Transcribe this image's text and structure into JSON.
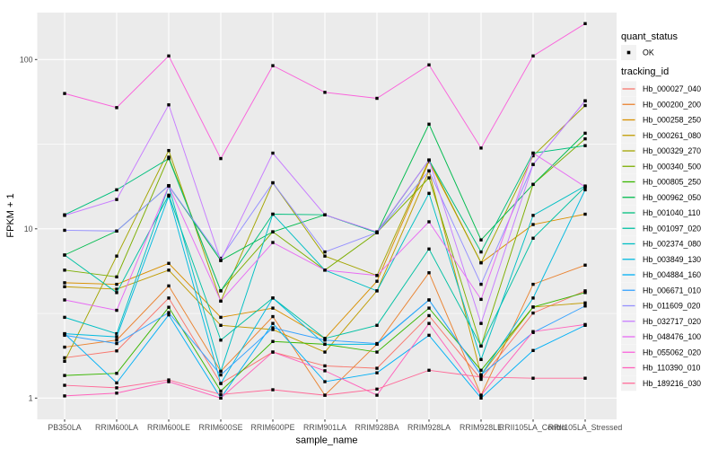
{
  "legend": {
    "quant_title": "quant_status",
    "quant_value": "OK",
    "tracking_title": "tracking_id",
    "key_bg": "#F2F2F2",
    "point_color": "#000000"
  },
  "panel": {
    "bg": "#EBEBEB",
    "grid_color": "#FFFFFF",
    "tick_color": "#333333",
    "tick_label_color": "#4D4D4D"
  },
  "chart_data": {
    "type": "line",
    "title": "",
    "xlabel": "sample_name",
    "ylabel": "FPKM + 1",
    "y_scale": "log10",
    "ylim": [
      0.95,
      190
    ],
    "grid": "white major and minor on gray panel",
    "legend_position": "right",
    "point_marker": "small black square (quant_status OK)",
    "y_ticks": {
      "labels": [
        "100",
        "10",
        "1"
      ],
      "values": [
        100,
        10,
        1
      ]
    },
    "y_minor_ticks": [
      3.162,
      31.62
    ],
    "categories": [
      "PB350LA",
      "RRIM600LA",
      "RRIM600LE",
      "RRIM600SE",
      "RRIM600PE",
      "RRIM901LA",
      "RRIM928BA",
      "RRIM928LA",
      "RRIM928LE",
      "RRII105LA_Control",
      "RRII105LA_Stressed"
    ],
    "series": [
      {
        "name": "Hb_000027_040",
        "color": "#F8766D",
        "values": [
          1.73,
          1.9,
          3.9,
          1.22,
          1.87,
          1.55,
          1.5,
          3.07,
          1.29,
          3.18,
          4.3
        ]
      },
      {
        "name": "Hb_000200_200",
        "color": "#EA8331",
        "values": [
          2.0,
          2.2,
          4.6,
          1.44,
          3.03,
          1.04,
          2.08,
          5.5,
          1.04,
          4.7,
          6.1
        ]
      },
      {
        "name": "Hb_000258_250",
        "color": "#D89000",
        "values": [
          4.8,
          4.7,
          6.25,
          3.0,
          3.4,
          2.25,
          4.9,
          25.0,
          6.3,
          10.6,
          12.2
        ]
      },
      {
        "name": "Hb_000261_080",
        "color": "#C09B00",
        "values": [
          4.55,
          4.4,
          5.7,
          2.69,
          2.54,
          1.87,
          4.3,
          22.0,
          1.37,
          3.45,
          3.65
        ]
      },
      {
        "name": "Hb_000329_270",
        "color": "#A3A500",
        "values": [
          1.65,
          6.9,
          29.0,
          3.74,
          18.7,
          6.9,
          5.3,
          25.5,
          6.3,
          27.0,
          53.5
        ]
      },
      {
        "name": "Hb_000340_500",
        "color": "#7CAE00",
        "values": [
          5.7,
          5.2,
          26.5,
          4.3,
          9.6,
          5.7,
          9.5,
          20.0,
          2.03,
          18.3,
          34.0
        ]
      },
      {
        "name": "Hb_000805_250",
        "color": "#39B600",
        "values": [
          1.36,
          1.4,
          3.44,
          1.1,
          2.16,
          2.08,
          1.87,
          3.4,
          1.46,
          3.45,
          4.2
        ]
      },
      {
        "name": "Hb_000962_050",
        "color": "#00BB4E",
        "values": [
          7.0,
          9.7,
          18.0,
          6.5,
          9.6,
          12.1,
          9.5,
          41.5,
          8.6,
          18.3,
          36.7
        ]
      },
      {
        "name": "Hb_001040_110",
        "color": "#00BF7D",
        "values": [
          12.1,
          17.0,
          26.0,
          4.3,
          12.2,
          12.1,
          9.5,
          25.5,
          7.3,
          28.0,
          31.0
        ]
      },
      {
        "name": "Hb_001097_020",
        "color": "#00C1A3",
        "values": [
          7.0,
          4.2,
          15.8,
          2.2,
          3.9,
          2.25,
          2.69,
          7.6,
          2.03,
          8.8,
          17.7
        ]
      },
      {
        "name": "Hb_002374_080",
        "color": "#00BFC4",
        "values": [
          3.0,
          2.4,
          17.9,
          1.44,
          12.2,
          5.7,
          4.3,
          16.2,
          1.69,
          12.0,
          17.9
        ]
      },
      {
        "name": "Hb_003849_130",
        "color": "#00BAE0",
        "values": [
          2.4,
          2.3,
          15.6,
          1.22,
          3.9,
          2.08,
          2.08,
          3.8,
          1.37,
          3.9,
          17.0
        ]
      },
      {
        "name": "Hb_004884_160",
        "color": "#00B0F6",
        "values": [
          2.4,
          1.23,
          3.1,
          1.0,
          2.76,
          1.25,
          1.41,
          2.35,
          1.0,
          1.91,
          2.69
        ]
      },
      {
        "name": "Hb_006671_010",
        "color": "#35A2FF",
        "values": [
          2.35,
          2.1,
          3.2,
          1.37,
          2.6,
          2.2,
          2.1,
          3.8,
          1.37,
          2.44,
          3.5
        ]
      },
      {
        "name": "Hb_011609_020",
        "color": "#9590FF",
        "values": [
          9.8,
          9.7,
          18.0,
          6.7,
          18.7,
          7.3,
          9.5,
          22.0,
          4.7,
          24.0,
          57.0
        ]
      },
      {
        "name": "Hb_032717_020",
        "color": "#C77CFF",
        "values": [
          12.0,
          14.9,
          54.0,
          6.5,
          28.0,
          12.1,
          9.6,
          25.5,
          2.76,
          24.0,
          57.0
        ]
      },
      {
        "name": "Hb_048476_100",
        "color": "#E76BF3",
        "values": [
          3.8,
          3.3,
          17.9,
          3.74,
          8.3,
          5.7,
          5.3,
          11.0,
          3.83,
          28.0,
          17.7
        ]
      },
      {
        "name": "Hb_055062_020",
        "color": "#FA62DB",
        "values": [
          63,
          52,
          105,
          26,
          92,
          64,
          59,
          93,
          30,
          105,
          163
        ]
      },
      {
        "name": "Hb_110390_010",
        "color": "#FF62BC",
        "values": [
          1.03,
          1.07,
          1.25,
          1.0,
          1.87,
          1.45,
          1.04,
          2.76,
          1.04,
          2.47,
          2.72
        ]
      },
      {
        "name": "Hb_189216_030",
        "color": "#FF6A98",
        "values": [
          1.19,
          1.15,
          1.28,
          1.05,
          1.12,
          1.04,
          1.13,
          1.46,
          1.33,
          1.31,
          1.31
        ]
      }
    ]
  }
}
